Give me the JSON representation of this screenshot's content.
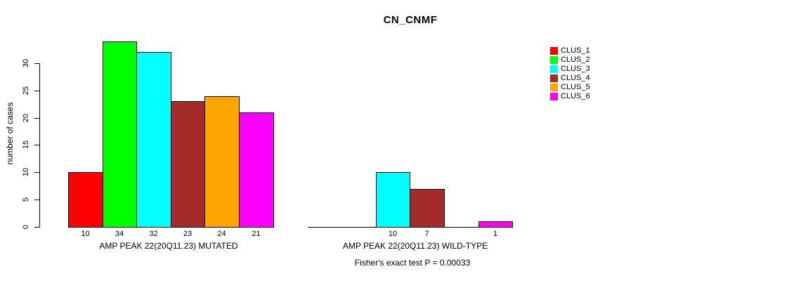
{
  "title": "CN_CNMF",
  "chart_data": {
    "type": "bar",
    "title": "CN_CNMF",
    "ylabel": "number of cases",
    "ylim": [
      0,
      34
    ],
    "yticks": [
      0,
      5,
      10,
      15,
      20,
      25,
      30
    ],
    "grid": false,
    "legend_position": "right",
    "series_labels": [
      "CLUS_1",
      "CLUS_2",
      "CLUS_3",
      "CLUS_4",
      "CLUS_5",
      "CLUS_6"
    ],
    "series_colors": [
      "#FF0000",
      "#00FF00",
      "#00FFFF",
      "#A52A2A",
      "#FFA500",
      "#FF00FF"
    ],
    "groups": [
      {
        "label": "AMP PEAK 22(20Q11.23) MUTATED",
        "values": [
          10,
          34,
          32,
          23,
          24,
          21
        ]
      },
      {
        "label": "AMP PEAK 22(20Q11.23) WILD-TYPE",
        "values": [
          0,
          0,
          10,
          7,
          0,
          1
        ]
      }
    ],
    "annotation": "Fisher's exact test P = 0.00033"
  },
  "legend": {
    "items": [
      {
        "label": "CLUS_1",
        "color": "#FF0000"
      },
      {
        "label": "CLUS_2",
        "color": "#00FF00"
      },
      {
        "label": "CLUS_3",
        "color": "#00FFFF"
      },
      {
        "label": "CLUS_4",
        "color": "#A52A2A"
      },
      {
        "label": "CLUS_5",
        "color": "#FFA500"
      },
      {
        "label": "CLUS_6",
        "color": "#FF00FF"
      }
    ]
  }
}
